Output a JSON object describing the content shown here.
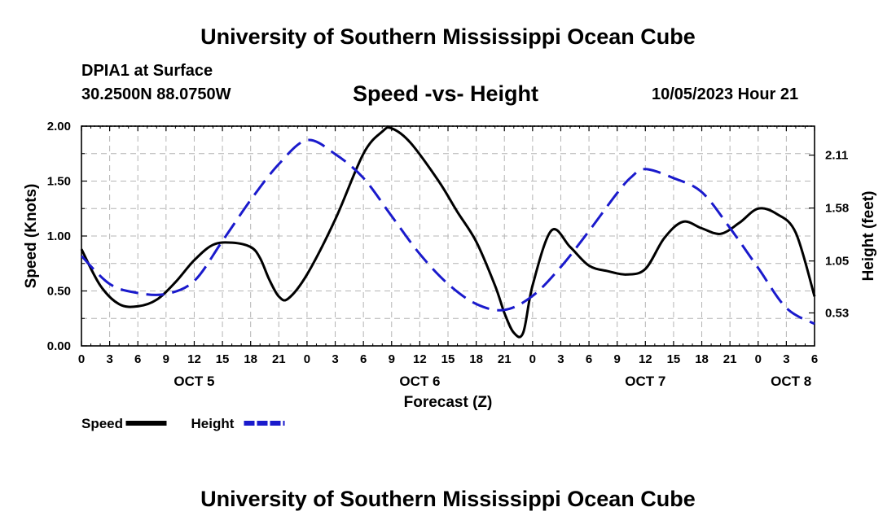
{
  "header": {
    "title": "University of Southern Mississippi Ocean Cube",
    "station": "DPIA1 at Surface",
    "coords": "30.2500N  88.0750W",
    "subtitle": "Speed -vs- Height",
    "datetime": "10/05/2023 Hour 21",
    "footer_title": "University of Southern Mississippi Ocean Cube"
  },
  "chart_data": {
    "type": "line",
    "title": "Speed -vs- Height",
    "xlabel": "Forecast (Z)",
    "ylabel": "Speed (Knots)",
    "y2label": "Height (feet)",
    "x_range_hours": [
      0,
      78
    ],
    "ylim": [
      0,
      2.0
    ],
    "y2lim": [
      0.2,
      2.4
    ],
    "x_ticks": [
      {
        "hour": 0,
        "label": "0"
      },
      {
        "hour": 3,
        "label": "3"
      },
      {
        "hour": 6,
        "label": "6"
      },
      {
        "hour": 9,
        "label": "9"
      },
      {
        "hour": 12,
        "label": "12"
      },
      {
        "hour": 15,
        "label": "15"
      },
      {
        "hour": 18,
        "label": "18"
      },
      {
        "hour": 21,
        "label": "21"
      },
      {
        "hour": 24,
        "label": "0"
      },
      {
        "hour": 27,
        "label": "3"
      },
      {
        "hour": 30,
        "label": "6"
      },
      {
        "hour": 33,
        "label": "9"
      },
      {
        "hour": 36,
        "label": "12"
      },
      {
        "hour": 39,
        "label": "15"
      },
      {
        "hour": 42,
        "label": "18"
      },
      {
        "hour": 45,
        "label": "21"
      },
      {
        "hour": 48,
        "label": "0"
      },
      {
        "hour": 51,
        "label": "3"
      },
      {
        "hour": 54,
        "label": "6"
      },
      {
        "hour": 57,
        "label": "9"
      },
      {
        "hour": 60,
        "label": "12"
      },
      {
        "hour": 63,
        "label": "15"
      },
      {
        "hour": 66,
        "label": "18"
      },
      {
        "hour": 69,
        "label": "21"
      },
      {
        "hour": 72,
        "label": "0"
      },
      {
        "hour": 75,
        "label": "3"
      },
      {
        "hour": 78,
        "label": "6"
      }
    ],
    "day_labels": [
      {
        "hour": 12,
        "label": "OCT 5"
      },
      {
        "hour": 36,
        "label": "OCT 6"
      },
      {
        "hour": 60,
        "label": "OCT 7"
      },
      {
        "hour": 75.5,
        "label": "OCT 8"
      }
    ],
    "y_ticks": [
      "0.00",
      "0.50",
      "1.00",
      "1.50",
      "2.00"
    ],
    "y_tick_values": [
      0,
      0.5,
      1.0,
      1.5,
      2.0
    ],
    "y2_ticks": [
      "0.53",
      "1.05",
      "1.58",
      "2.11"
    ],
    "y2_tick_values": [
      0.53,
      1.05,
      1.58,
      2.11
    ],
    "legend": [
      {
        "name": "Speed",
        "color": "#000000",
        "style": "solid"
      },
      {
        "name": "Height",
        "color": "#1a1acc",
        "style": "dashed"
      }
    ],
    "series": [
      {
        "name": "Speed",
        "axis": "left",
        "color": "#000000",
        "x": [
          0,
          2,
          4,
          6,
          8,
          10,
          12,
          14,
          16,
          18,
          19,
          20,
          21,
          22,
          24,
          27,
          30,
          32,
          33,
          35,
          38,
          40,
          42,
          44,
          45,
          46,
          47,
          48,
          50,
          52,
          54,
          56,
          58,
          60,
          62,
          64,
          66,
          68,
          70,
          72,
          74,
          76,
          78
        ],
        "values": [
          0.88,
          0.55,
          0.38,
          0.36,
          0.42,
          0.58,
          0.78,
          0.92,
          0.94,
          0.9,
          0.8,
          0.6,
          0.45,
          0.43,
          0.65,
          1.15,
          1.75,
          1.95,
          1.98,
          1.85,
          1.5,
          1.22,
          0.95,
          0.55,
          0.3,
          0.12,
          0.12,
          0.55,
          1.05,
          0.9,
          0.73,
          0.68,
          0.65,
          0.7,
          0.98,
          1.13,
          1.07,
          1.02,
          1.12,
          1.25,
          1.2,
          1.03,
          0.45
        ]
      },
      {
        "name": "Height",
        "axis": "right",
        "color": "#1a1acc",
        "x": [
          0,
          3,
          6,
          9,
          12,
          15,
          18,
          21,
          24,
          27,
          30,
          33,
          36,
          39,
          42,
          45,
          48,
          51,
          54,
          57,
          58.5,
          60,
          63,
          66,
          69,
          72,
          75,
          78
        ],
        "values": [
          1.1,
          0.82,
          0.73,
          0.72,
          0.85,
          1.25,
          1.66,
          2.02,
          2.26,
          2.12,
          1.88,
          1.5,
          1.12,
          0.82,
          0.62,
          0.56,
          0.7,
          0.99,
          1.35,
          1.73,
          1.89,
          1.97,
          1.88,
          1.74,
          1.38,
          0.98,
          0.58,
          0.42
        ]
      }
    ]
  }
}
